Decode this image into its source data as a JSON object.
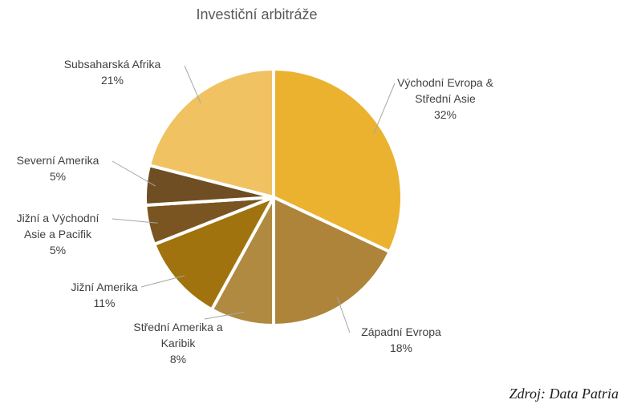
{
  "chart_data": {
    "type": "pie",
    "title": "Investiční arbitráže",
    "categories": [
      "Východní Evropa & Střední Asie",
      "Západní Evropa",
      "Střední Amerika a Karibik",
      "Jižní Amerika",
      "Jižní a Východní Asie a Pacifik",
      "Severní Amerika",
      "Subsaharská Afrika"
    ],
    "values": [
      32,
      18,
      8,
      11,
      5,
      5,
      21
    ],
    "value_labels": [
      "32%",
      "18%",
      "8%",
      "11%",
      "5%",
      "5%",
      "21%"
    ],
    "colors": [
      "#ebb230",
      "#ad843a",
      "#b08a40",
      "#a0730f",
      "#7a5521",
      "#6e4e22",
      "#f0c262"
    ],
    "source": "Zdroj: Data Patria"
  }
}
